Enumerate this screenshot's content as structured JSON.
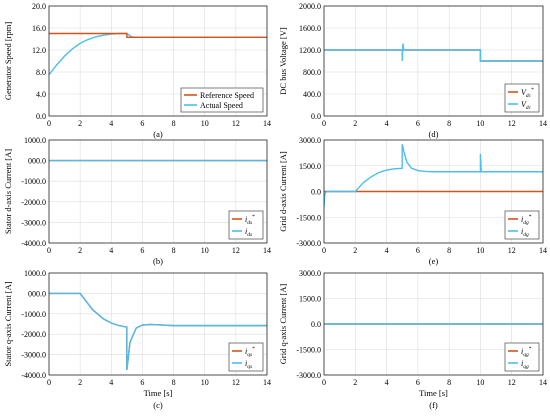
{
  "chart_data": [
    {
      "id": "a",
      "type": "line",
      "panel_label": "(a)",
      "ylabel": "Generator Speed [rpm]",
      "xlabel": "",
      "xlim": [
        0,
        14
      ],
      "ylim": [
        0,
        20
      ],
      "xticks": [
        "0",
        "2",
        "4",
        "6",
        "8",
        "10",
        "12",
        "14"
      ],
      "yticks": [
        "0.0",
        "4.0",
        "8.0",
        "12.0",
        "16.0",
        "20.0"
      ],
      "legend": {
        "position": "bottom-right",
        "style": "plain"
      },
      "series": [
        {
          "name": "Reference Speed",
          "color": "#d95319",
          "x": [
            0,
            5.0,
            5.0,
            14
          ],
          "y": [
            15.0,
            15.0,
            14.3,
            14.3
          ]
        },
        {
          "name": "Actual Speed",
          "color": "#4dbeee",
          "x": [
            0,
            0.5,
            1.0,
            1.5,
            2.0,
            2.5,
            3.0,
            3.5,
            4.0,
            4.5,
            5.0,
            5.3,
            5.6,
            14
          ],
          "y": [
            7.5,
            9.3,
            10.9,
            12.2,
            13.2,
            13.9,
            14.4,
            14.7,
            14.9,
            15.0,
            15.0,
            14.4,
            14.3,
            14.3
          ]
        }
      ]
    },
    {
      "id": "d",
      "type": "line",
      "panel_label": "(d)",
      "ylabel": "DC bus Voltage [V]",
      "xlabel": "",
      "xlim": [
        0,
        14
      ],
      "ylim": [
        0,
        2000
      ],
      "xticks": [
        "0",
        "2",
        "4",
        "6",
        "8",
        "10",
        "12",
        "14"
      ],
      "yticks": [
        "0.0",
        "400.0",
        "800.0",
        "1200.0",
        "1600.0",
        "2000.0"
      ],
      "legend": {
        "position": "bottom-right",
        "style": "math"
      },
      "series": [
        {
          "name": "V",
          "sub": "dc",
          "sup": "*",
          "color": "#d95319",
          "x": [
            0,
            10,
            10,
            14
          ],
          "y": [
            1200,
            1200,
            1000,
            1000
          ]
        },
        {
          "name": "V",
          "sub": "dc",
          "sup": "",
          "color": "#4dbeee",
          "x": [
            0,
            5.0,
            5.0,
            5.05,
            5.1,
            5.15,
            10,
            10,
            10.1,
            14
          ],
          "y": [
            1200,
            1200,
            1000,
            1320,
            1200,
            1200,
            1200,
            1000,
            1000,
            1000
          ]
        }
      ]
    },
    {
      "id": "b",
      "type": "line",
      "panel_label": "(b)",
      "ylabel": "Stator d-axis Current [A]",
      "xlabel": "",
      "xlim": [
        0,
        14
      ],
      "ylim": [
        -4000,
        1000
      ],
      "xticks": [
        "0",
        "2",
        "4",
        "6",
        "8",
        "10",
        "12",
        "14"
      ],
      "yticks": [
        "1000.0",
        "000.0",
        "-1000.0",
        "-2000.0",
        "-3000.0",
        "-4000.0"
      ],
      "legend": {
        "position": "bottom-right",
        "style": "math"
      },
      "series": [
        {
          "name": "i",
          "sub": "ds",
          "sup": "*",
          "color": "#d95319",
          "x": [
            0,
            14
          ],
          "y": [
            0,
            0
          ]
        },
        {
          "name": "i",
          "sub": "ds",
          "sup": "",
          "color": "#4dbeee",
          "x": [
            0,
            14
          ],
          "y": [
            0,
            0
          ]
        }
      ]
    },
    {
      "id": "e",
      "type": "line",
      "panel_label": "(e)",
      "ylabel": "Grid d-axis Current [A]",
      "xlabel": "",
      "xlim": [
        0,
        14
      ],
      "ylim": [
        -3000,
        3000
      ],
      "xticks": [
        "0",
        "2",
        "4",
        "6",
        "8",
        "10",
        "12",
        "14"
      ],
      "yticks": [
        "3000.0",
        "1500.0",
        "0.0",
        "-1500.0",
        "-3000.0"
      ],
      "legend": {
        "position": "bottom-right",
        "style": "math"
      },
      "series": [
        {
          "name": "i",
          "sub": "dg",
          "sup": "*",
          "color": "#d95319",
          "x": [
            0,
            14
          ],
          "y": [
            0,
            0
          ],
          "hidden_under_actual": true
        },
        {
          "name": "i",
          "sub": "dg",
          "sup": "",
          "color": "#4dbeee",
          "x": [
            0,
            0.05,
            0.15,
            2.0,
            2.2,
            2.5,
            3.0,
            3.5,
            4.0,
            4.5,
            5.0,
            5.0,
            5.1,
            5.3,
            5.6,
            6.0,
            6.5,
            7.0,
            10.0,
            10.0,
            10.05,
            10.1,
            14
          ],
          "y": [
            -900,
            -150,
            0,
            0,
            200,
            500,
            850,
            1100,
            1250,
            1320,
            1350,
            2750,
            2350,
            1700,
            1350,
            1220,
            1170,
            1150,
            1150,
            2200,
            1150,
            1150,
            1150
          ]
        }
      ]
    },
    {
      "id": "c",
      "type": "line",
      "panel_label": "(c)",
      "ylabel": "Stator q-axis Current [A]",
      "xlabel": "Time [s]",
      "xlim": [
        0,
        14
      ],
      "ylim": [
        -4000,
        1000
      ],
      "xticks": [
        "0",
        "2",
        "4",
        "6",
        "8",
        "10",
        "12",
        "14"
      ],
      "yticks": [
        "1000.0",
        "000.0",
        "-1000.0",
        "-2000.0",
        "-3000.0",
        "-4000.0"
      ],
      "legend": {
        "position": "bottom-right",
        "style": "math"
      },
      "series": [
        {
          "name": "i",
          "sub": "qs",
          "sup": "*",
          "color": "#d95319",
          "x": [
            0,
            2.0,
            2.3,
            2.8,
            3.5,
            4.0,
            4.5,
            5.0,
            5.0,
            5.2,
            5.6,
            6.0,
            6.5,
            7.0,
            8.0,
            14
          ],
          "y": [
            0,
            0,
            -300,
            -800,
            -1250,
            -1450,
            -1580,
            -1650,
            -3750,
            -2400,
            -1700,
            -1550,
            -1520,
            -1540,
            -1580,
            -1580
          ]
        },
        {
          "name": "i",
          "sub": "qs",
          "sup": "",
          "color": "#4dbeee",
          "x": [
            0,
            2.0,
            2.3,
            2.8,
            3.5,
            4.0,
            4.5,
            5.0,
            5.0,
            5.2,
            5.6,
            6.0,
            6.5,
            7.0,
            8.0,
            14
          ],
          "y": [
            0,
            0,
            -300,
            -800,
            -1250,
            -1450,
            -1580,
            -1650,
            -3750,
            -2400,
            -1700,
            -1550,
            -1520,
            -1540,
            -1580,
            -1580
          ]
        }
      ]
    },
    {
      "id": "f",
      "type": "line",
      "panel_label": "(f)",
      "ylabel": "Grid q-axis Current [A]",
      "xlabel": "Time [s]",
      "xlim": [
        0,
        14
      ],
      "ylim": [
        -3000,
        3000
      ],
      "xticks": [
        "0",
        "2",
        "4",
        "6",
        "8",
        "10",
        "12",
        "14"
      ],
      "yticks": [
        "3000.0",
        "1500.0",
        "0.0",
        "-1500.0",
        "-3000.0"
      ],
      "legend": {
        "position": "bottom-right",
        "style": "math"
      },
      "series": [
        {
          "name": "i",
          "sub": "qg",
          "sup": "*",
          "color": "#d95319",
          "x": [
            0,
            14
          ],
          "y": [
            0,
            0
          ]
        },
        {
          "name": "i",
          "sub": "qg",
          "sup": "",
          "color": "#4dbeee",
          "x": [
            0,
            14
          ],
          "y": [
            0,
            0
          ]
        }
      ]
    }
  ]
}
